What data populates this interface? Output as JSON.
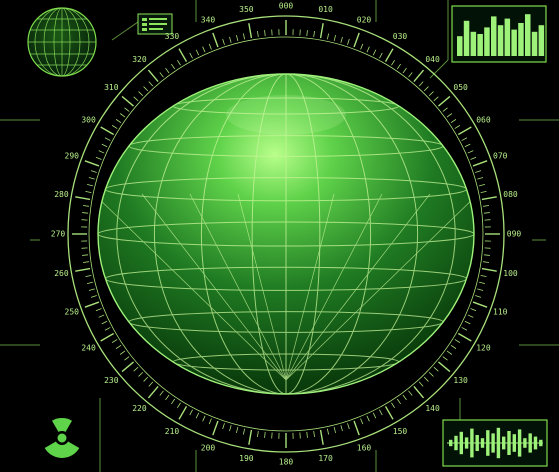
{
  "colors": {
    "background": "#000000",
    "frame": "#5c8f3a",
    "scale": "#a8e07a",
    "globe_light": "#9ef27a",
    "globe_mid": "#2f9a2a",
    "globe_dark": "#042a06",
    "grid": "#c9f59a",
    "accent": "#7ddc4a"
  },
  "bearing_labels": [
    {
      "bearing": 0,
      "text": "000"
    },
    {
      "bearing": 10,
      "text": "010"
    },
    {
      "bearing": 20,
      "text": "020"
    },
    {
      "bearing": 30,
      "text": "030"
    },
    {
      "bearing": 40,
      "text": "040"
    },
    {
      "bearing": 50,
      "text": "050"
    },
    {
      "bearing": 60,
      "text": "060"
    },
    {
      "bearing": 70,
      "text": "070"
    },
    {
      "bearing": 80,
      "text": "080"
    },
    {
      "bearing": 90,
      "text": "090"
    },
    {
      "bearing": 100,
      "text": "100"
    },
    {
      "bearing": 110,
      "text": "110"
    },
    {
      "bearing": 120,
      "text": "120"
    },
    {
      "bearing": 130,
      "text": "130"
    },
    {
      "bearing": 140,
      "text": "140"
    },
    {
      "bearing": 150,
      "text": "150"
    },
    {
      "bearing": 160,
      "text": "160"
    },
    {
      "bearing": 170,
      "text": "170"
    },
    {
      "bearing": 180,
      "text": "180"
    },
    {
      "bearing": 190,
      "text": "190"
    },
    {
      "bearing": 200,
      "text": "200"
    },
    {
      "bearing": 210,
      "text": "210"
    },
    {
      "bearing": 220,
      "text": "220"
    },
    {
      "bearing": 230,
      "text": "230"
    },
    {
      "bearing": 240,
      "text": "240"
    },
    {
      "bearing": 250,
      "text": "250"
    },
    {
      "bearing": 260,
      "text": "260"
    },
    {
      "bearing": 270,
      "text": "270"
    },
    {
      "bearing": 280,
      "text": "280"
    },
    {
      "bearing": 290,
      "text": "290"
    },
    {
      "bearing": 300,
      "text": "300"
    },
    {
      "bearing": 310,
      "text": "310"
    },
    {
      "bearing": 320,
      "text": "320"
    },
    {
      "bearing": 330,
      "text": "330"
    },
    {
      "bearing": 340,
      "text": "340"
    },
    {
      "bearing": 350,
      "text": "350"
    }
  ],
  "bar_graph_levels": [
    0.45,
    0.8,
    0.55,
    0.5,
    0.65,
    0.9,
    0.7,
    0.85,
    0.6,
    0.75,
    0.95,
    0.55,
    0.7
  ],
  "waveform_levels": [
    0.2,
    0.45,
    0.7,
    0.35,
    0.9,
    0.5,
    0.3,
    0.8,
    0.6,
    0.95,
    0.4,
    0.75,
    0.55,
    0.85,
    0.3,
    0.6,
    0.4,
    0.2
  ],
  "icons": {
    "mini_globe": "mini-globe-icon",
    "legend": "legend-icon",
    "radiation": "radiation-icon"
  }
}
